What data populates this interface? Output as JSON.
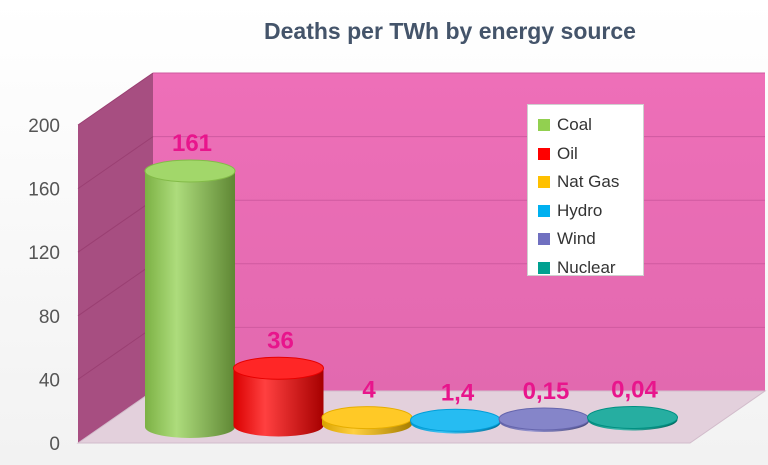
{
  "chart_data": {
    "type": "bar",
    "title": "Deaths per TWh by energy source",
    "categories": [
      "Coal",
      "Oil",
      "Nat Gas",
      "Hydro",
      "Wind",
      "Nuclear"
    ],
    "values": [
      161,
      36,
      4,
      1.4,
      0.15,
      0.04
    ],
    "data_labels": [
      "161",
      "36",
      "4",
      "1,4",
      "0,15",
      "0,04"
    ],
    "colors": [
      "#92d050",
      "#ff0000",
      "#ffc000",
      "#00b0f0",
      "#7070c0",
      "#00a090"
    ],
    "yticks": [
      "0",
      "40",
      "80",
      "120",
      "160",
      "200"
    ],
    "ylim": [
      0,
      200
    ],
    "xlabel": "",
    "ylabel": "",
    "legend_position": "top-right",
    "grid": true,
    "style": "3d-cylinder",
    "wall_color": "#ee6fb8",
    "label_color": "#e8158c"
  }
}
